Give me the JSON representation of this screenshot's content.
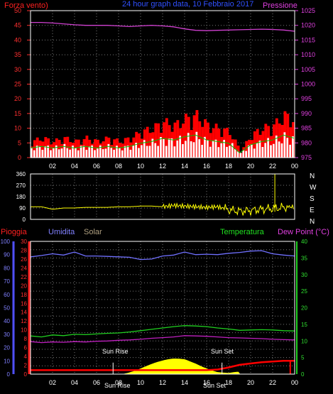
{
  "header": {
    "left_label": "Forza vento)",
    "title": "24 hour graph data, 10 Febbraio 2017",
    "right_label": "Pressione"
  },
  "colors": {
    "wind_gust": "#ff0000",
    "wind_avg": "#00c000",
    "wind_base": "#ffffff",
    "pressure": "#d040d0",
    "direction": "#ffff00",
    "humidity": "#7070ff",
    "temperature": "#20d020",
    "dewpoint": "#c020c0",
    "rain": "#ff0000",
    "solar": "#ffff00",
    "grid": "#777777",
    "frame": "#ffffff"
  },
  "chart_data": [
    {
      "type": "area",
      "panel": "wind_pressure",
      "x_ticks": [
        "02",
        "04",
        "06",
        "08",
        "10",
        "12",
        "14",
        "16",
        "18",
        "20",
        "22",
        "00"
      ],
      "y_left_ticks": [
        "0",
        "5",
        "10",
        "15",
        "20",
        "25",
        "30",
        "35",
        "40",
        "45",
        "50"
      ],
      "y_right_ticks": [
        "975",
        "980",
        "985",
        "990",
        "995",
        "1000",
        "1005",
        "1010",
        "1015",
        "1020",
        "1025"
      ],
      "ylim_left": [
        0,
        50
      ],
      "ylim_right": [
        975,
        1025
      ],
      "x": [
        0,
        1,
        2,
        3,
        4,
        5,
        6,
        7,
        8,
        9,
        10,
        11,
        12,
        13,
        14,
        15,
        16,
        17,
        18,
        19,
        20,
        21,
        22,
        23,
        24
      ],
      "series": [
        {
          "name": "Forza vento)",
          "axis": "left",
          "values": [
            5,
            6,
            5,
            6,
            5,
            6,
            5,
            6,
            5,
            6,
            8,
            9,
            11,
            10,
            12,
            13,
            10,
            9,
            8,
            2,
            7,
            9,
            10,
            13,
            11
          ]
        },
        {
          "name": "Pressione",
          "axis": "right",
          "values": [
            1021,
            1021,
            1020.8,
            1020.5,
            1020.2,
            1020,
            1020,
            1020,
            1019.8,
            1019.6,
            1019.8,
            1020,
            1019.8,
            1019.5,
            1018.8,
            1018.3,
            1018.2,
            1018.3,
            1018.4,
            1018.5,
            1018.6,
            1018.7,
            1018.6,
            1018.4,
            1018
          ]
        }
      ]
    },
    {
      "type": "line",
      "panel": "wind_direction",
      "y_left_ticks": [
        "0",
        "90",
        "180",
        "270",
        "360"
      ],
      "compass": [
        "N",
        "W",
        "S",
        "E",
        "N"
      ],
      "ylim": [
        0,
        360
      ],
      "x": [
        0,
        1,
        2,
        3,
        4,
        5,
        6,
        7,
        8,
        9,
        10,
        11,
        12,
        13,
        14,
        15,
        16,
        17,
        18,
        19,
        20,
        21,
        22,
        23,
        24
      ],
      "values": [
        100,
        100,
        80,
        90,
        90,
        95,
        95,
        95,
        100,
        100,
        105,
        105,
        100,
        110,
        105,
        100,
        95,
        100,
        75,
        65,
        70,
        80,
        85,
        95,
        100
      ]
    },
    {
      "type": "line",
      "panel": "climate",
      "labels": {
        "rain": "Pioggia",
        "humidity": "Umidita",
        "solar": "Solar",
        "temperature": "Temperatura",
        "dewpoint": "Dew Point (°C)"
      },
      "x_ticks": [
        "02",
        "04",
        "06",
        "08",
        "10",
        "12",
        "14",
        "16",
        "18",
        "20",
        "22",
        "00"
      ],
      "y_rain_ticks": [
        "0",
        "10",
        "20",
        "30",
        "40",
        "50",
        "60",
        "70",
        "80",
        "90",
        "100"
      ],
      "y_hum_ticks": [
        "0",
        "2",
        "4",
        "6",
        "8",
        "10",
        "12",
        "14",
        "16",
        "18",
        "20",
        "22",
        "24",
        "26",
        "28",
        "30"
      ],
      "y_temp_ticks": [
        "0",
        "5",
        "10",
        "15",
        "20",
        "25",
        "30",
        "35",
        "40"
      ],
      "ylim_temp": [
        0,
        40
      ],
      "ylim_hum": [
        0,
        30
      ],
      "ylim_rain": [
        0,
        100
      ],
      "annotations": [
        "Sun Rise",
        "Sun Set"
      ],
      "x_markers": [
        "Sun Rise",
        "Sun Set"
      ],
      "x": [
        0,
        1,
        2,
        3,
        4,
        5,
        6,
        7,
        8,
        9,
        10,
        11,
        12,
        13,
        14,
        15,
        16,
        17,
        18,
        19,
        20,
        21,
        22,
        23,
        24
      ],
      "series": [
        {
          "name": "Umidita",
          "axis": "hum",
          "values": [
            26.5,
            26.8,
            27.2,
            26.9,
            27.6,
            26.7,
            26.7,
            26.6,
            26.5,
            26.4,
            25.9,
            26.0,
            26.7,
            26.9,
            27.6,
            27.0,
            27.1,
            27.0,
            27.3,
            27.5,
            27.8,
            27.9,
            27.2,
            26.9,
            26.7
          ]
        },
        {
          "name": "Temperatura",
          "axis": "temp",
          "values": [
            11.5,
            11.2,
            11.8,
            11.6,
            12.0,
            11.9,
            12.1,
            12.3,
            12.4,
            12.7,
            13.1,
            13.5,
            13.9,
            14.3,
            14.6,
            14.5,
            14.3,
            13.9,
            13.6,
            13.2,
            13.3,
            13.4,
            13.3,
            13.1,
            13.0
          ]
        },
        {
          "name": "Dew Point (°C)",
          "axis": "temp",
          "values": [
            9.8,
            9.5,
            9.7,
            9.6,
            9.8,
            9.7,
            9.9,
            10.0,
            10.2,
            10.3,
            10.5,
            10.8,
            11.0,
            11.2,
            11.6,
            11.5,
            11.4,
            11.2,
            11.0,
            10.9,
            10.8,
            10.7,
            10.5,
            10.4,
            10.3
          ]
        },
        {
          "name": "Solar",
          "axis": "hum",
          "values": [
            0,
            0,
            0,
            0,
            0,
            0,
            0,
            0,
            0.3,
            1.0,
            1.6,
            2.1,
            2.5,
            3.0,
            3.3,
            2.8,
            1.9,
            0.8,
            0.1,
            0,
            0,
            0,
            0,
            0,
            0
          ]
        },
        {
          "name": "Pioggia",
          "axis": "rain",
          "values": [
            3,
            3,
            3,
            3,
            3,
            3,
            3,
            3,
            3,
            3,
            3,
            3,
            3,
            3,
            3,
            3,
            3,
            3.5,
            5,
            7,
            8,
            9,
            9.5,
            10,
            10
          ]
        }
      ]
    }
  ]
}
